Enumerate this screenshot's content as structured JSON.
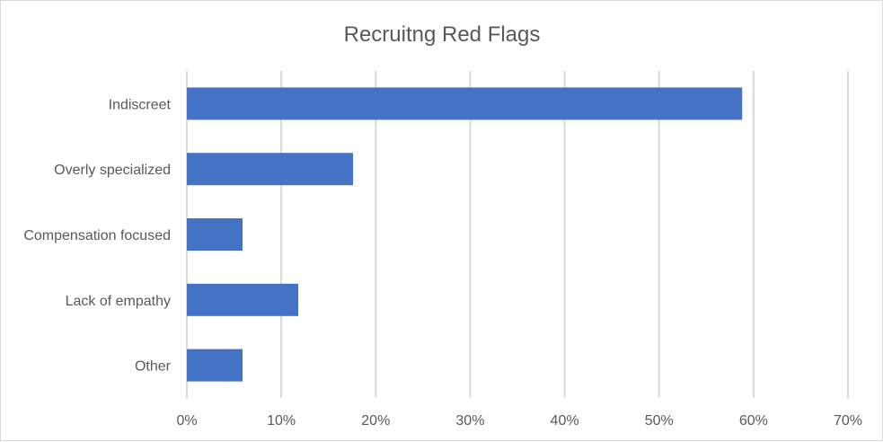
{
  "chart_data": {
    "type": "bar",
    "orientation": "horizontal",
    "title": "Recruitng Red Flags",
    "categories": [
      "Indiscreet",
      "Overly specialized",
      "Compensation focused",
      "Lack of empathy",
      "Other"
    ],
    "values": [
      0.588,
      0.176,
      0.059,
      0.118,
      0.059
    ],
    "xlim": [
      0,
      0.7
    ],
    "ticks": [
      0,
      0.1,
      0.2,
      0.3,
      0.4,
      0.5,
      0.6,
      0.7
    ],
    "tick_labels": [
      "0%",
      "10%",
      "20%",
      "30%",
      "40%",
      "50%",
      "60%",
      "70%"
    ],
    "xlabel": "",
    "ylabel": "",
    "grid": true,
    "legend": "none",
    "bar_color": "#4472c4",
    "grid_color": "#d9d9d9",
    "text_color": "#595959"
  }
}
